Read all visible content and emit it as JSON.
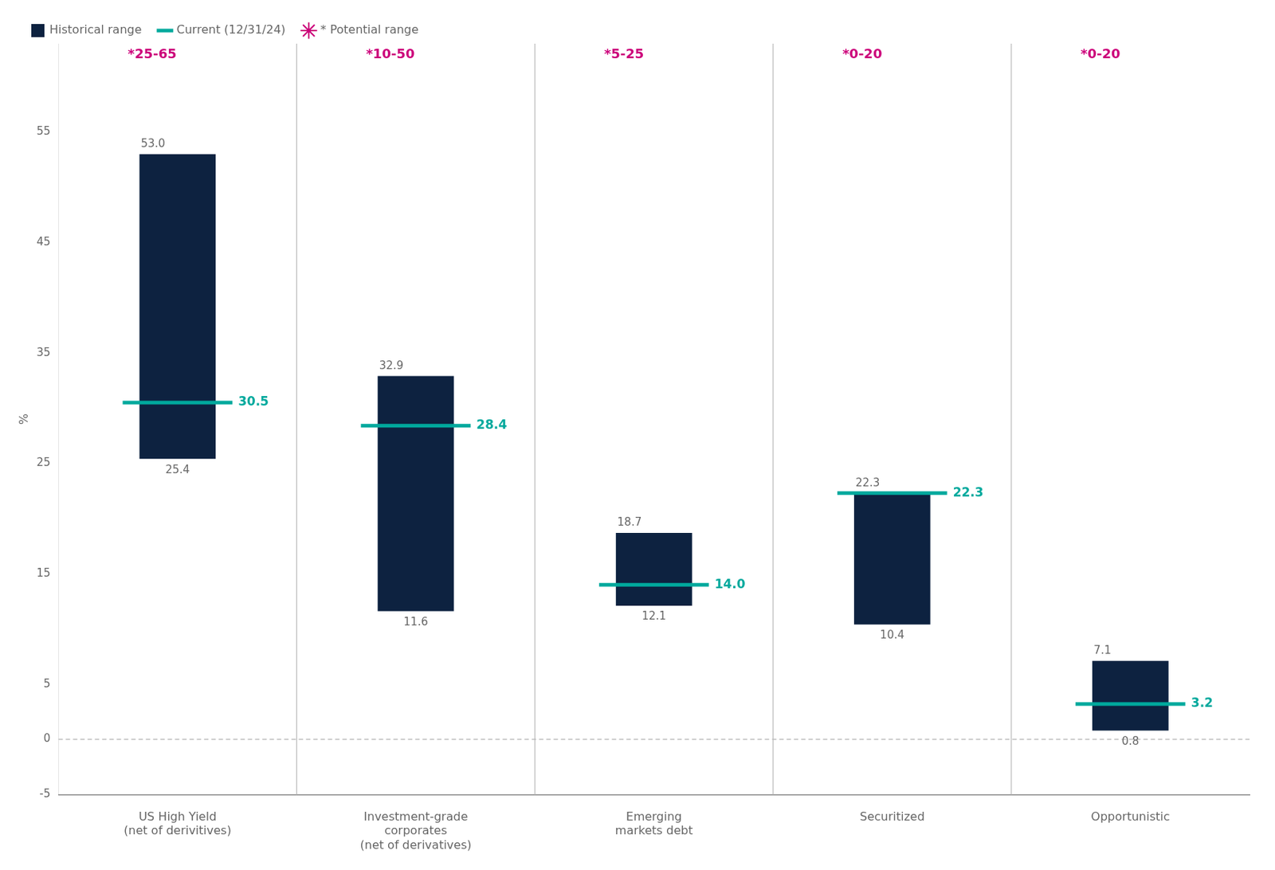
{
  "chart_data": {
    "type": "bar",
    "categories": [
      "US High Yield\n(net of derivitives)",
      "Investment-grade\ncorporates\n(net of derivatives)",
      "Emerging\nmarkets debt",
      "Securitized",
      "Opportunistic"
    ],
    "series": [
      {
        "name": "Historical range",
        "type": "bar",
        "color": "#0d2240",
        "values": [
          [
            25.4,
            53.0
          ],
          [
            11.6,
            32.9
          ],
          [
            12.1,
            18.7
          ],
          [
            10.4,
            22.3
          ],
          [
            0.8,
            7.1
          ]
        ],
        "value_labels": [
          [
            "25.4",
            "53.0"
          ],
          [
            "11.6",
            "32.9"
          ],
          [
            "12.1",
            "18.7"
          ],
          [
            "10.4",
            "22.3"
          ],
          [
            "0.8",
            "7.1"
          ]
        ],
        "data_labels": true
      },
      {
        "name": "Current (12/31/24)",
        "type": "line",
        "marker": "line",
        "line_style": "none",
        "color": "#00a99d",
        "values": [
          30.5,
          28.4,
          14.0,
          22.3,
          3.2
        ],
        "value_labels": [
          "30.5",
          "28.4",
          "14.0",
          "22.3",
          "3.2"
        ],
        "data_labels": true
      },
      {
        "name": "* Potential range",
        "type": "annotation",
        "marker": "star",
        "color": "#cc007a",
        "labels": [
          "*25-65",
          "*10-50",
          "*5-25",
          "*0-20",
          "*0-20"
        ]
      }
    ],
    "ylabel": "%",
    "ylim": [
      -5,
      63
    ],
    "yticks": [
      -5,
      0,
      5,
      15,
      25,
      35,
      45,
      55
    ],
    "hline": 0,
    "grid": false,
    "legend": "upper left"
  }
}
